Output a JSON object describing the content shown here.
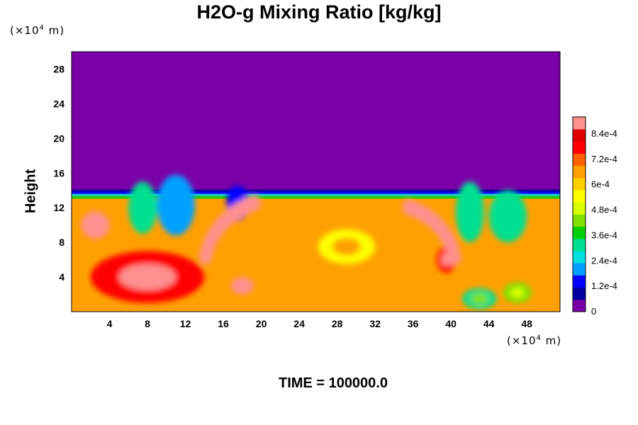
{
  "chart_data": {
    "type": "heatmap",
    "title": "H2O-g Mixing Ratio [kg/kg]",
    "ylabel": "Height",
    "xlabel": "",
    "x_unit": {
      "prefix": "(×10",
      "exp": "4",
      "suffix": " m)"
    },
    "y_unit": {
      "prefix": "(×10",
      "exp": "4",
      "suffix": " m)"
    },
    "xlim": [
      0,
      51.5
    ],
    "ylim": [
      0,
      30
    ],
    "x_ticks": [
      4,
      8,
      12,
      16,
      20,
      24,
      28,
      32,
      36,
      40,
      44,
      48
    ],
    "y_ticks": [
      4,
      8,
      12,
      16,
      20,
      24,
      28
    ],
    "colorbar": {
      "range": [
        0,
        0.00092
      ],
      "ticks": [
        {
          "value": 0,
          "label": "0"
        },
        {
          "value": 0.00012,
          "label": "1.2e-4"
        },
        {
          "value": 0.00024,
          "label": "2.4e-4"
        },
        {
          "value": 0.00036,
          "label": "3.6e-4"
        },
        {
          "value": 0.00048,
          "label": "4.8e-4"
        },
        {
          "value": 0.0006,
          "label": "6e-4"
        },
        {
          "value": 0.00072,
          "label": "7.2e-4"
        },
        {
          "value": 0.00084,
          "label": "8.4e-4"
        }
      ],
      "colors": [
        "#7a00a8",
        "#0000a0",
        "#0000ff",
        "#00a0ff",
        "#00e0e0",
        "#00e090",
        "#00d000",
        "#80e000",
        "#d8ff00",
        "#ffff00",
        "#ffd000",
        "#ffa000",
        "#ff6000",
        "#ff0000",
        "#e00000",
        "#ff9090"
      ]
    },
    "field": {
      "background_value": 0.00068,
      "dry_layer_top_km": 30,
      "moist_layer_top": 13.5,
      "features": [
        {
          "kind": "blob",
          "x": 8,
          "y": 4,
          "rx": 6,
          "ry": 3,
          "value": 0.0008
        },
        {
          "kind": "blob",
          "x": 2.5,
          "y": 10,
          "rx": 1.5,
          "ry": 1.6,
          "value": 0.0009
        },
        {
          "kind": "blob",
          "x": 18,
          "y": 3,
          "rx": 1.2,
          "ry": 1.0,
          "value": 0.0009
        },
        {
          "kind": "blob",
          "x": 43,
          "y": 1.5,
          "rx": 1.8,
          "ry": 1.2,
          "value": 0.00033
        },
        {
          "kind": "blob",
          "x": 47,
          "y": 2.2,
          "rx": 1.5,
          "ry": 1.2,
          "value": 0.00042
        },
        {
          "kind": "blob",
          "x": 29,
          "y": 7.5,
          "rx": 3,
          "ry": 2,
          "value": 0.00056
        },
        {
          "kind": "blob",
          "x": 39.5,
          "y": 6,
          "rx": 1,
          "ry": 1.5,
          "value": 0.0008
        },
        {
          "kind": "plume",
          "x": 11,
          "y": 12.3,
          "rx": 2,
          "ry": 3.5,
          "value": 0.00018
        },
        {
          "kind": "plume",
          "x": 7.5,
          "y": 12,
          "rx": 1.5,
          "ry": 3,
          "value": 0.0003
        },
        {
          "kind": "plume",
          "x": 42,
          "y": 11.5,
          "rx": 1.5,
          "ry": 3.5,
          "value": 0.0003
        },
        {
          "kind": "plume",
          "x": 46,
          "y": 11,
          "rx": 2,
          "ry": 3,
          "value": 0.0003
        },
        {
          "kind": "plume",
          "x": 17.5,
          "y": 12.5,
          "rx": 1.2,
          "ry": 2,
          "value": 0.00012
        },
        {
          "kind": "arc",
          "cx": 22,
          "cy": 5,
          "r": 8,
          "from_deg": 110,
          "to_deg": 170,
          "value": 0.0009
        },
        {
          "kind": "arc",
          "cx": 33,
          "cy": 5,
          "r": 7.5,
          "from_deg": 10,
          "to_deg": 70,
          "value": 0.0009
        }
      ]
    }
  },
  "footer": {
    "label": "TIME = 100000.0"
  }
}
